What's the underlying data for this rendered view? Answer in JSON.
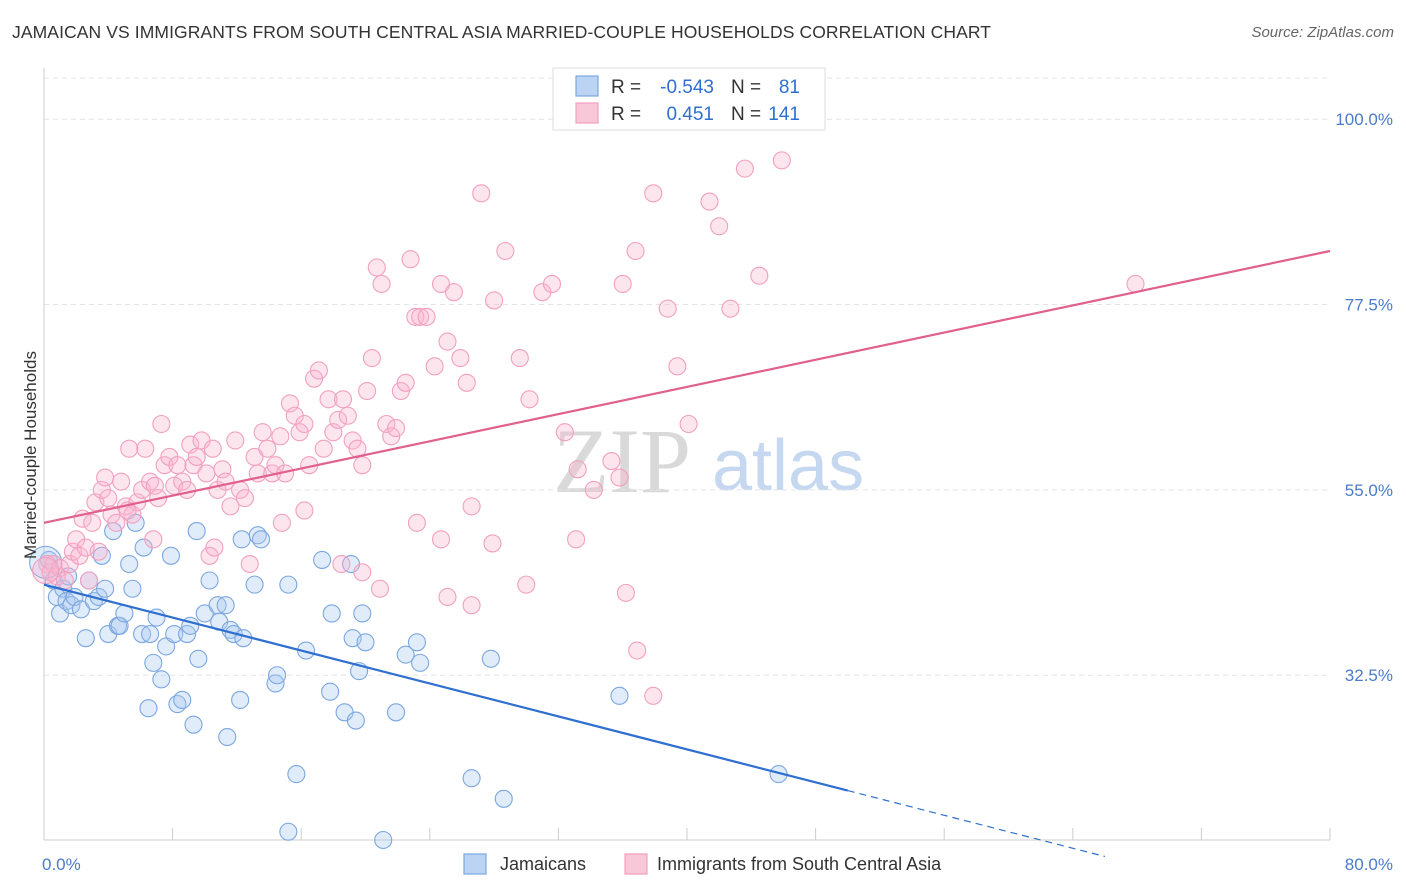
{
  "title": "JAMAICAN VS IMMIGRANTS FROM SOUTH CENTRAL ASIA MARRIED-COUPLE HOUSEHOLDS CORRELATION CHART",
  "source": "Source: ZipAtlas.com",
  "watermark": {
    "zip": "ZIP",
    "atlas": "atlas"
  },
  "legend_box": {
    "rows": [
      {
        "r_label": "R =",
        "r_value": "-0.543",
        "n_label": "N =",
        "n_value": "81"
      },
      {
        "r_label": "R =",
        "r_value": "0.451",
        "n_label": "N =",
        "n_value": "141"
      }
    ]
  },
  "bottom_legend": [
    "Jamaicans",
    "Immigrants from South Central Asia"
  ],
  "chart_data": {
    "type": "scatter",
    "title": "JAMAICAN VS IMMIGRANTS FROM SOUTH CENTRAL ASIA MARRIED-COUPLE HOUSEHOLDS CORRELATION CHART",
    "xlabel": "",
    "ylabel": "Married-couple Households",
    "xlim": [
      0,
      80
    ],
    "ylim": [
      12.5,
      105
    ],
    "x_tick_labels": [
      {
        "value": 0,
        "label": "0.0%"
      },
      {
        "value": 80,
        "label": "80.0%"
      }
    ],
    "y_tick_labels": [
      {
        "value": 32.5,
        "label": "32.5%"
      },
      {
        "value": 55.0,
        "label": "55.0%"
      },
      {
        "value": 77.5,
        "label": "77.5%"
      },
      {
        "value": 100.0,
        "label": "100.0%"
      }
    ],
    "grid": true,
    "series": [
      {
        "name": "Jamaicans",
        "color": "#7ba7e0",
        "line_color": "#2f6fcf",
        "trend": {
          "x0": 0,
          "y0": 43.5,
          "x1": 50,
          "y1": 18.5,
          "dashed_to_x": 66
        },
        "points": [
          [
            0.3,
            46.5
          ],
          [
            0.6,
            44
          ],
          [
            0.8,
            42
          ],
          [
            1.0,
            40
          ],
          [
            1.2,
            43
          ],
          [
            1.4,
            41.5
          ],
          [
            1.5,
            44.5
          ],
          [
            1.7,
            41
          ],
          [
            1.9,
            42
          ],
          [
            2.3,
            40.5
          ],
          [
            2.6,
            37
          ],
          [
            2.8,
            44
          ],
          [
            3.1,
            41.5
          ],
          [
            3.4,
            42
          ],
          [
            3.6,
            47
          ],
          [
            3.8,
            43
          ],
          [
            4.0,
            37.5
          ],
          [
            4.3,
            50
          ],
          [
            4.6,
            38.5
          ],
          [
            4.7,
            38.5
          ],
          [
            5.0,
            40
          ],
          [
            5.3,
            46
          ],
          [
            5.5,
            43
          ],
          [
            5.7,
            51
          ],
          [
            6.1,
            37.5
          ],
          [
            6.2,
            48
          ],
          [
            6.5,
            28.5
          ],
          [
            6.6,
            37.5
          ],
          [
            6.8,
            34
          ],
          [
            7.0,
            39.5
          ],
          [
            7.3,
            32
          ],
          [
            7.6,
            36
          ],
          [
            7.9,
            47
          ],
          [
            8.1,
            37.5
          ],
          [
            8.3,
            29
          ],
          [
            8.6,
            29.5
          ],
          [
            8.9,
            37.5
          ],
          [
            9.1,
            38.5
          ],
          [
            9.5,
            50
          ],
          [
            9.6,
            34.5
          ],
          [
            10.0,
            40
          ],
          [
            10.3,
            44
          ],
          [
            10.8,
            41
          ],
          [
            10.9,
            39
          ],
          [
            11.3,
            41
          ],
          [
            11.4,
            25
          ],
          [
            11.6,
            38
          ],
          [
            11.8,
            37.5
          ],
          [
            12.3,
            49
          ],
          [
            12.4,
            37
          ],
          [
            13.1,
            43.5
          ],
          [
            13.3,
            49.5
          ],
          [
            13.5,
            49
          ],
          [
            14.4,
            31.5
          ],
          [
            14.5,
            32.5
          ],
          [
            15.2,
            13.5
          ],
          [
            15.2,
            43.5
          ],
          [
            15.7,
            20.5
          ],
          [
            16.3,
            35.5
          ],
          [
            17.3,
            46.5
          ],
          [
            17.8,
            30.5
          ],
          [
            17.9,
            40
          ],
          [
            18.7,
            28
          ],
          [
            19.1,
            46
          ],
          [
            19.2,
            37
          ],
          [
            19.4,
            27
          ],
          [
            19.6,
            33
          ],
          [
            19.8,
            40
          ],
          [
            20.0,
            36.5
          ],
          [
            21.9,
            28
          ],
          [
            22.5,
            35
          ],
          [
            23.2,
            36.5
          ],
          [
            23.4,
            34
          ],
          [
            26.6,
            20
          ],
          [
            27.8,
            34.5
          ],
          [
            28.6,
            17.5
          ],
          [
            35.8,
            30
          ],
          [
            45.7,
            20.5
          ],
          [
            21.1,
            12.5
          ],
          [
            9.3,
            26.5
          ],
          [
            12.2,
            29.5
          ]
        ]
      },
      {
        "name": "Immigrants from South Central Asia",
        "color": "#f2a0bf",
        "line_color": "#e0608e",
        "trend": {
          "x0": 0,
          "y0": 51,
          "x1": 80,
          "y1": 84
        },
        "points": [
          [
            0.2,
            46
          ],
          [
            0.4,
            45
          ],
          [
            0.6,
            46
          ],
          [
            0.8,
            44.5
          ],
          [
            1.0,
            45.5
          ],
          [
            1.3,
            44
          ],
          [
            1.6,
            46
          ],
          [
            1.8,
            47.5
          ],
          [
            2.0,
            49
          ],
          [
            2.2,
            47
          ],
          [
            2.4,
            51.5
          ],
          [
            2.6,
            48
          ],
          [
            2.8,
            44
          ],
          [
            3.0,
            51
          ],
          [
            3.2,
            53.5
          ],
          [
            3.4,
            47.5
          ],
          [
            3.6,
            55
          ],
          [
            3.8,
            56.5
          ],
          [
            4.0,
            54
          ],
          [
            4.2,
            52
          ],
          [
            4.5,
            51
          ],
          [
            4.8,
            56
          ],
          [
            5.1,
            53
          ],
          [
            5.3,
            60
          ],
          [
            5.5,
            52
          ],
          [
            5.8,
            53.5
          ],
          [
            6.1,
            55
          ],
          [
            6.3,
            60
          ],
          [
            6.6,
            56
          ],
          [
            6.9,
            55.5
          ],
          [
            7.1,
            54
          ],
          [
            7.3,
            63
          ],
          [
            7.5,
            58
          ],
          [
            7.8,
            59
          ],
          [
            8.1,
            55.5
          ],
          [
            8.3,
            58
          ],
          [
            8.6,
            56
          ],
          [
            8.9,
            55
          ],
          [
            9.1,
            60.5
          ],
          [
            9.3,
            58
          ],
          [
            9.5,
            59
          ],
          [
            9.8,
            61
          ],
          [
            10.1,
            57
          ],
          [
            10.3,
            47
          ],
          [
            10.5,
            60
          ],
          [
            10.8,
            55
          ],
          [
            11.1,
            57.5
          ],
          [
            11.3,
            56
          ],
          [
            11.6,
            53
          ],
          [
            11.9,
            61
          ],
          [
            12.2,
            55
          ],
          [
            12.5,
            54
          ],
          [
            12.8,
            46
          ],
          [
            13.1,
            59
          ],
          [
            13.3,
            57
          ],
          [
            13.6,
            62
          ],
          [
            13.9,
            60
          ],
          [
            14.2,
            57
          ],
          [
            14.4,
            58
          ],
          [
            14.7,
            61.5
          ],
          [
            15.0,
            57
          ],
          [
            15.3,
            65.5
          ],
          [
            15.6,
            64
          ],
          [
            15.9,
            62
          ],
          [
            16.2,
            63
          ],
          [
            16.5,
            58
          ],
          [
            16.8,
            68.5
          ],
          [
            17.1,
            69.5
          ],
          [
            17.4,
            60
          ],
          [
            17.7,
            66
          ],
          [
            18.0,
            62
          ],
          [
            18.3,
            63.5
          ],
          [
            18.6,
            66
          ],
          [
            18.9,
            64
          ],
          [
            19.2,
            61
          ],
          [
            19.5,
            60
          ],
          [
            19.8,
            58
          ],
          [
            20.1,
            67
          ],
          [
            20.4,
            71
          ],
          [
            20.7,
            82
          ],
          [
            21.0,
            80
          ],
          [
            21.3,
            63
          ],
          [
            21.6,
            61.5
          ],
          [
            21.9,
            62.5
          ],
          [
            22.2,
            67
          ],
          [
            22.5,
            68
          ],
          [
            22.8,
            83
          ],
          [
            23.1,
            76
          ],
          [
            23.4,
            76
          ],
          [
            23.8,
            76
          ],
          [
            24.3,
            70
          ],
          [
            24.7,
            80
          ],
          [
            25.1,
            73
          ],
          [
            25.5,
            79
          ],
          [
            25.9,
            71
          ],
          [
            26.3,
            68
          ],
          [
            26.6,
            53
          ],
          [
            27.2,
            91
          ],
          [
            28.0,
            78
          ],
          [
            28.7,
            84
          ],
          [
            29.6,
            71
          ],
          [
            30.2,
            66
          ],
          [
            31.0,
            79
          ],
          [
            31.6,
            80
          ],
          [
            32.4,
            62
          ],
          [
            33.2,
            57.5
          ],
          [
            34.2,
            55
          ],
          [
            35.3,
            58.5
          ],
          [
            36.0,
            80
          ],
          [
            36.8,
            84
          ],
          [
            37.9,
            91
          ],
          [
            38.8,
            77
          ],
          [
            39.4,
            70
          ],
          [
            40.1,
            63
          ],
          [
            41.4,
            90
          ],
          [
            42.0,
            87
          ],
          [
            42.7,
            77
          ],
          [
            43.6,
            94
          ],
          [
            44.5,
            81
          ],
          [
            45.9,
            95
          ],
          [
            5.2,
            52.5
          ],
          [
            6.8,
            49
          ],
          [
            10.6,
            48
          ],
          [
            14.8,
            51
          ],
          [
            16.2,
            52.5
          ],
          [
            18.5,
            46
          ],
          [
            19.8,
            45
          ],
          [
            20.9,
            43
          ],
          [
            23.2,
            51
          ],
          [
            24.7,
            49
          ],
          [
            25.1,
            42
          ],
          [
            26.6,
            41
          ],
          [
            27.9,
            48.5
          ],
          [
            30.0,
            43.5
          ],
          [
            33.1,
            49
          ],
          [
            35.8,
            56.5
          ],
          [
            36.2,
            42.5
          ],
          [
            36.9,
            35.5
          ],
          [
            37.9,
            30
          ],
          [
            67.9,
            80
          ]
        ]
      }
    ]
  }
}
